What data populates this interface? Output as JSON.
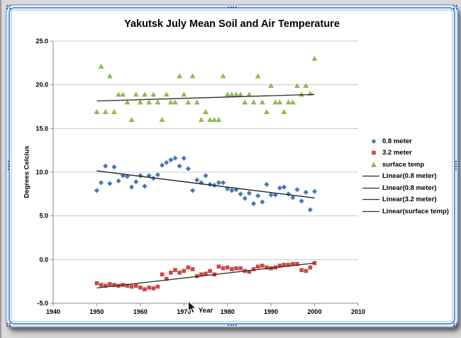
{
  "chart_data": {
    "type": "scatter",
    "title": "Yakutsk July Mean Soil and Air Temperature",
    "xlabel": "Year",
    "ylabel": "Degrees Celcius",
    "xlim": [
      1940,
      2010
    ],
    "ylim": [
      -5.0,
      25.0
    ],
    "x_ticks": [
      "1940",
      "1950",
      "1960",
      "1970",
      "1980",
      "1990",
      "2000",
      "2010"
    ],
    "y_ticks": [
      "25.0",
      "20.0",
      "15.0",
      "10.0",
      "5.0",
      "0.0",
      "-5.0"
    ],
    "grid": "horizontal",
    "legend_position": "right",
    "years": [
      1950,
      1951,
      1952,
      1953,
      1954,
      1955,
      1956,
      1957,
      1958,
      1959,
      1960,
      1961,
      1962,
      1963,
      1964,
      1965,
      1966,
      1967,
      1968,
      1969,
      1970,
      1971,
      1972,
      1973,
      1974,
      1975,
      1976,
      1977,
      1978,
      1979,
      1980,
      1981,
      1982,
      1983,
      1984,
      1985,
      1986,
      1987,
      1988,
      1989,
      1990,
      1991,
      1992,
      1993,
      1994,
      1995,
      1996,
      1997,
      1998,
      1999,
      2000
    ],
    "series": [
      {
        "name": "0.8 meter",
        "marker": "diamond",
        "color": "#4879B8",
        "values": [
          7.9,
          8.8,
          10.7,
          8.7,
          10.6,
          9.0,
          9.6,
          9.5,
          8.3,
          8.9,
          9.6,
          8.4,
          9.6,
          9.3,
          9.7,
          10.8,
          11.1,
          11.4,
          11.6,
          10.7,
          11.6,
          10.4,
          7.9,
          9.1,
          8.8,
          9.6,
          8.6,
          8.5,
          8.8,
          8.8,
          8.1,
          7.9,
          8.0,
          7.5,
          7.0,
          7.6,
          6.4,
          7.3,
          6.6,
          8.6,
          7.4,
          7.4,
          8.2,
          8.3,
          7.5,
          7.1,
          8.0,
          6.7,
          7.7,
          5.7,
          7.8
        ]
      },
      {
        "name": "3.2 meter",
        "marker": "square",
        "color": "#CE4843",
        "values": [
          -2.7,
          -2.9,
          -3.0,
          -2.8,
          -2.9,
          -3.0,
          -2.9,
          -3.0,
          -3.1,
          -3.0,
          -3.2,
          -3.4,
          -3.2,
          -3.3,
          -3.1,
          -1.7,
          -2.2,
          -1.5,
          -1.2,
          -1.5,
          -1.3,
          -0.9,
          -1.1,
          -1.9,
          -1.7,
          -1.6,
          -1.3,
          -1.7,
          -0.8,
          -1.0,
          -0.9,
          -1.1,
          -1.0,
          -1.0,
          -1.3,
          -1.4,
          -1.1,
          -0.8,
          -0.7,
          -0.9,
          -1.0,
          -0.9,
          -0.7,
          -0.6,
          -0.6,
          -0.5,
          -0.5,
          -1.2,
          -1.3,
          -0.9,
          -0.4
        ]
      },
      {
        "name": "surface temp",
        "marker": "triangle",
        "color": "#8EBB4F",
        "values": [
          16.9,
          22.1,
          16.9,
          21.0,
          16.9,
          18.9,
          18.9,
          18.0,
          16.0,
          18.9,
          18.0,
          18.9,
          18.0,
          18.9,
          18.0,
          16.0,
          18.9,
          18.0,
          18.0,
          21.0,
          18.9,
          18.0,
          21.0,
          18.0,
          16.0,
          16.9,
          16.0,
          16.0,
          16.0,
          21.0,
          18.9,
          18.9,
          18.9,
          18.9,
          18.0,
          18.9,
          18.0,
          21.0,
          18.0,
          16.9,
          19.9,
          18.0,
          18.0,
          16.9,
          18.0,
          18.0,
          19.9,
          18.9,
          19.9,
          19.0,
          23.0
        ]
      }
    ],
    "trendlines": [
      {
        "name": "Linear(0.8 meter)",
        "color": "#2B2B2B",
        "start": {
          "x": 1950,
          "y": 10.15
        },
        "end": {
          "x": 2000,
          "y": 7.05
        }
      },
      {
        "name": "Linear(0.8 meter)",
        "color": "#2B2B2B",
        "start": {
          "x": 1950,
          "y": 10.15
        },
        "end": {
          "x": 2000,
          "y": 7.05
        }
      },
      {
        "name": "Linear(3.2 meter)",
        "color": "#2B2B2B",
        "start": {
          "x": 1950,
          "y": -3.25
        },
        "end": {
          "x": 2000,
          "y": -0.4
        }
      },
      {
        "name": "Linear(surface temp)",
        "color": "#2B2B2B",
        "start": {
          "x": 1950,
          "y": 18.15
        },
        "end": {
          "x": 2000,
          "y": 18.9
        }
      }
    ],
    "legend": [
      {
        "label": "0.8 meter",
        "marker": "diamond",
        "color": "#4879B8"
      },
      {
        "label": "3.2 meter",
        "marker": "square",
        "color": "#CE4843"
      },
      {
        "label": "surface temp",
        "marker": "triangle",
        "color": "#8EBB4F"
      },
      {
        "label": "Linear(0.8 meter)",
        "marker": "line",
        "color": "#2B2B2B"
      },
      {
        "label": "Linear(0.8 meter)",
        "marker": "line",
        "color": "#2B2B2B"
      },
      {
        "label": "Linear(3.2 meter)",
        "marker": "line",
        "color": "#2B2B2B"
      },
      {
        "label": "Linear(surface temp)",
        "marker": "line",
        "color": "#2B2B2B"
      }
    ],
    "colors": {
      "gridline": "#CACACA",
      "axis": "#898989",
      "selection_border_blue": "#6490C8",
      "selection_handle": "#274A80"
    }
  },
  "ui": {
    "state": "chart-object-selected",
    "cursor_icon": "arrow-cursor"
  }
}
